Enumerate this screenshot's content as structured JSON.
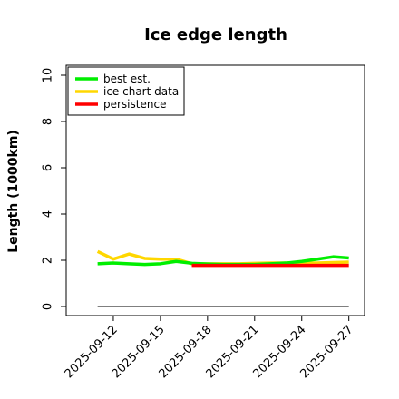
{
  "chart_data": {
    "type": "line",
    "title": "Ice edge length",
    "xlabel": "",
    "ylabel": "Length (1000km)",
    "ylim": [
      0,
      10
    ],
    "yticks": [
      0,
      2,
      4,
      6,
      8,
      10
    ],
    "xlim": [
      "2025-09-09",
      "2025-09-28"
    ],
    "xticks": [
      "2025-09-12",
      "2025-09-15",
      "2025-09-18",
      "2025-09-21",
      "2025-09-24",
      "2025-09-27"
    ],
    "grid": false,
    "legend": "top-left",
    "series": [
      {
        "name": "best est.",
        "color": "#00ee00",
        "points": [
          [
            "2025-09-11",
            1.85
          ],
          [
            "2025-09-12",
            1.88
          ],
          [
            "2025-09-13",
            1.85
          ],
          [
            "2025-09-14",
            1.82
          ],
          [
            "2025-09-15",
            1.85
          ],
          [
            "2025-09-16",
            1.95
          ],
          [
            "2025-09-17",
            1.87
          ],
          [
            "2025-09-18",
            1.84
          ],
          [
            "2025-09-19",
            1.82
          ],
          [
            "2025-09-20",
            1.82
          ],
          [
            "2025-09-21",
            1.82
          ],
          [
            "2025-09-22",
            1.85
          ],
          [
            "2025-09-23",
            1.88
          ],
          [
            "2025-09-24",
            1.95
          ],
          [
            "2025-09-25",
            2.05
          ],
          [
            "2025-09-26",
            2.15
          ],
          [
            "2025-09-27",
            2.1
          ]
        ]
      },
      {
        "name": "ice chart data",
        "color": "#ffd700",
        "points": [
          [
            "2025-09-11",
            2.38
          ],
          [
            "2025-09-12",
            2.05
          ],
          [
            "2025-09-13",
            2.27
          ],
          [
            "2025-09-14",
            2.08
          ],
          [
            "2025-09-15",
            2.05
          ],
          [
            "2025-09-16",
            2.05
          ],
          [
            "2025-09-17",
            1.85
          ],
          [
            "2025-09-18",
            1.85
          ],
          [
            "2025-09-19",
            1.85
          ],
          [
            "2025-09-20",
            1.85
          ],
          [
            "2025-09-21",
            1.87
          ],
          [
            "2025-09-22",
            1.88
          ],
          [
            "2025-09-23",
            1.88
          ],
          [
            "2025-09-24",
            1.88
          ],
          [
            "2025-09-25",
            1.88
          ],
          [
            "2025-09-26",
            1.9
          ],
          [
            "2025-09-27",
            1.92
          ]
        ]
      },
      {
        "name": "persistence",
        "color": "#ff0000",
        "points": [
          [
            "2025-09-17",
            1.78
          ],
          [
            "2025-09-27",
            1.78
          ]
        ]
      }
    ],
    "baseline": {
      "color": "#555555",
      "points": [
        [
          "2025-09-11",
          0
        ],
        [
          "2025-09-27",
          0
        ]
      ]
    }
  }
}
